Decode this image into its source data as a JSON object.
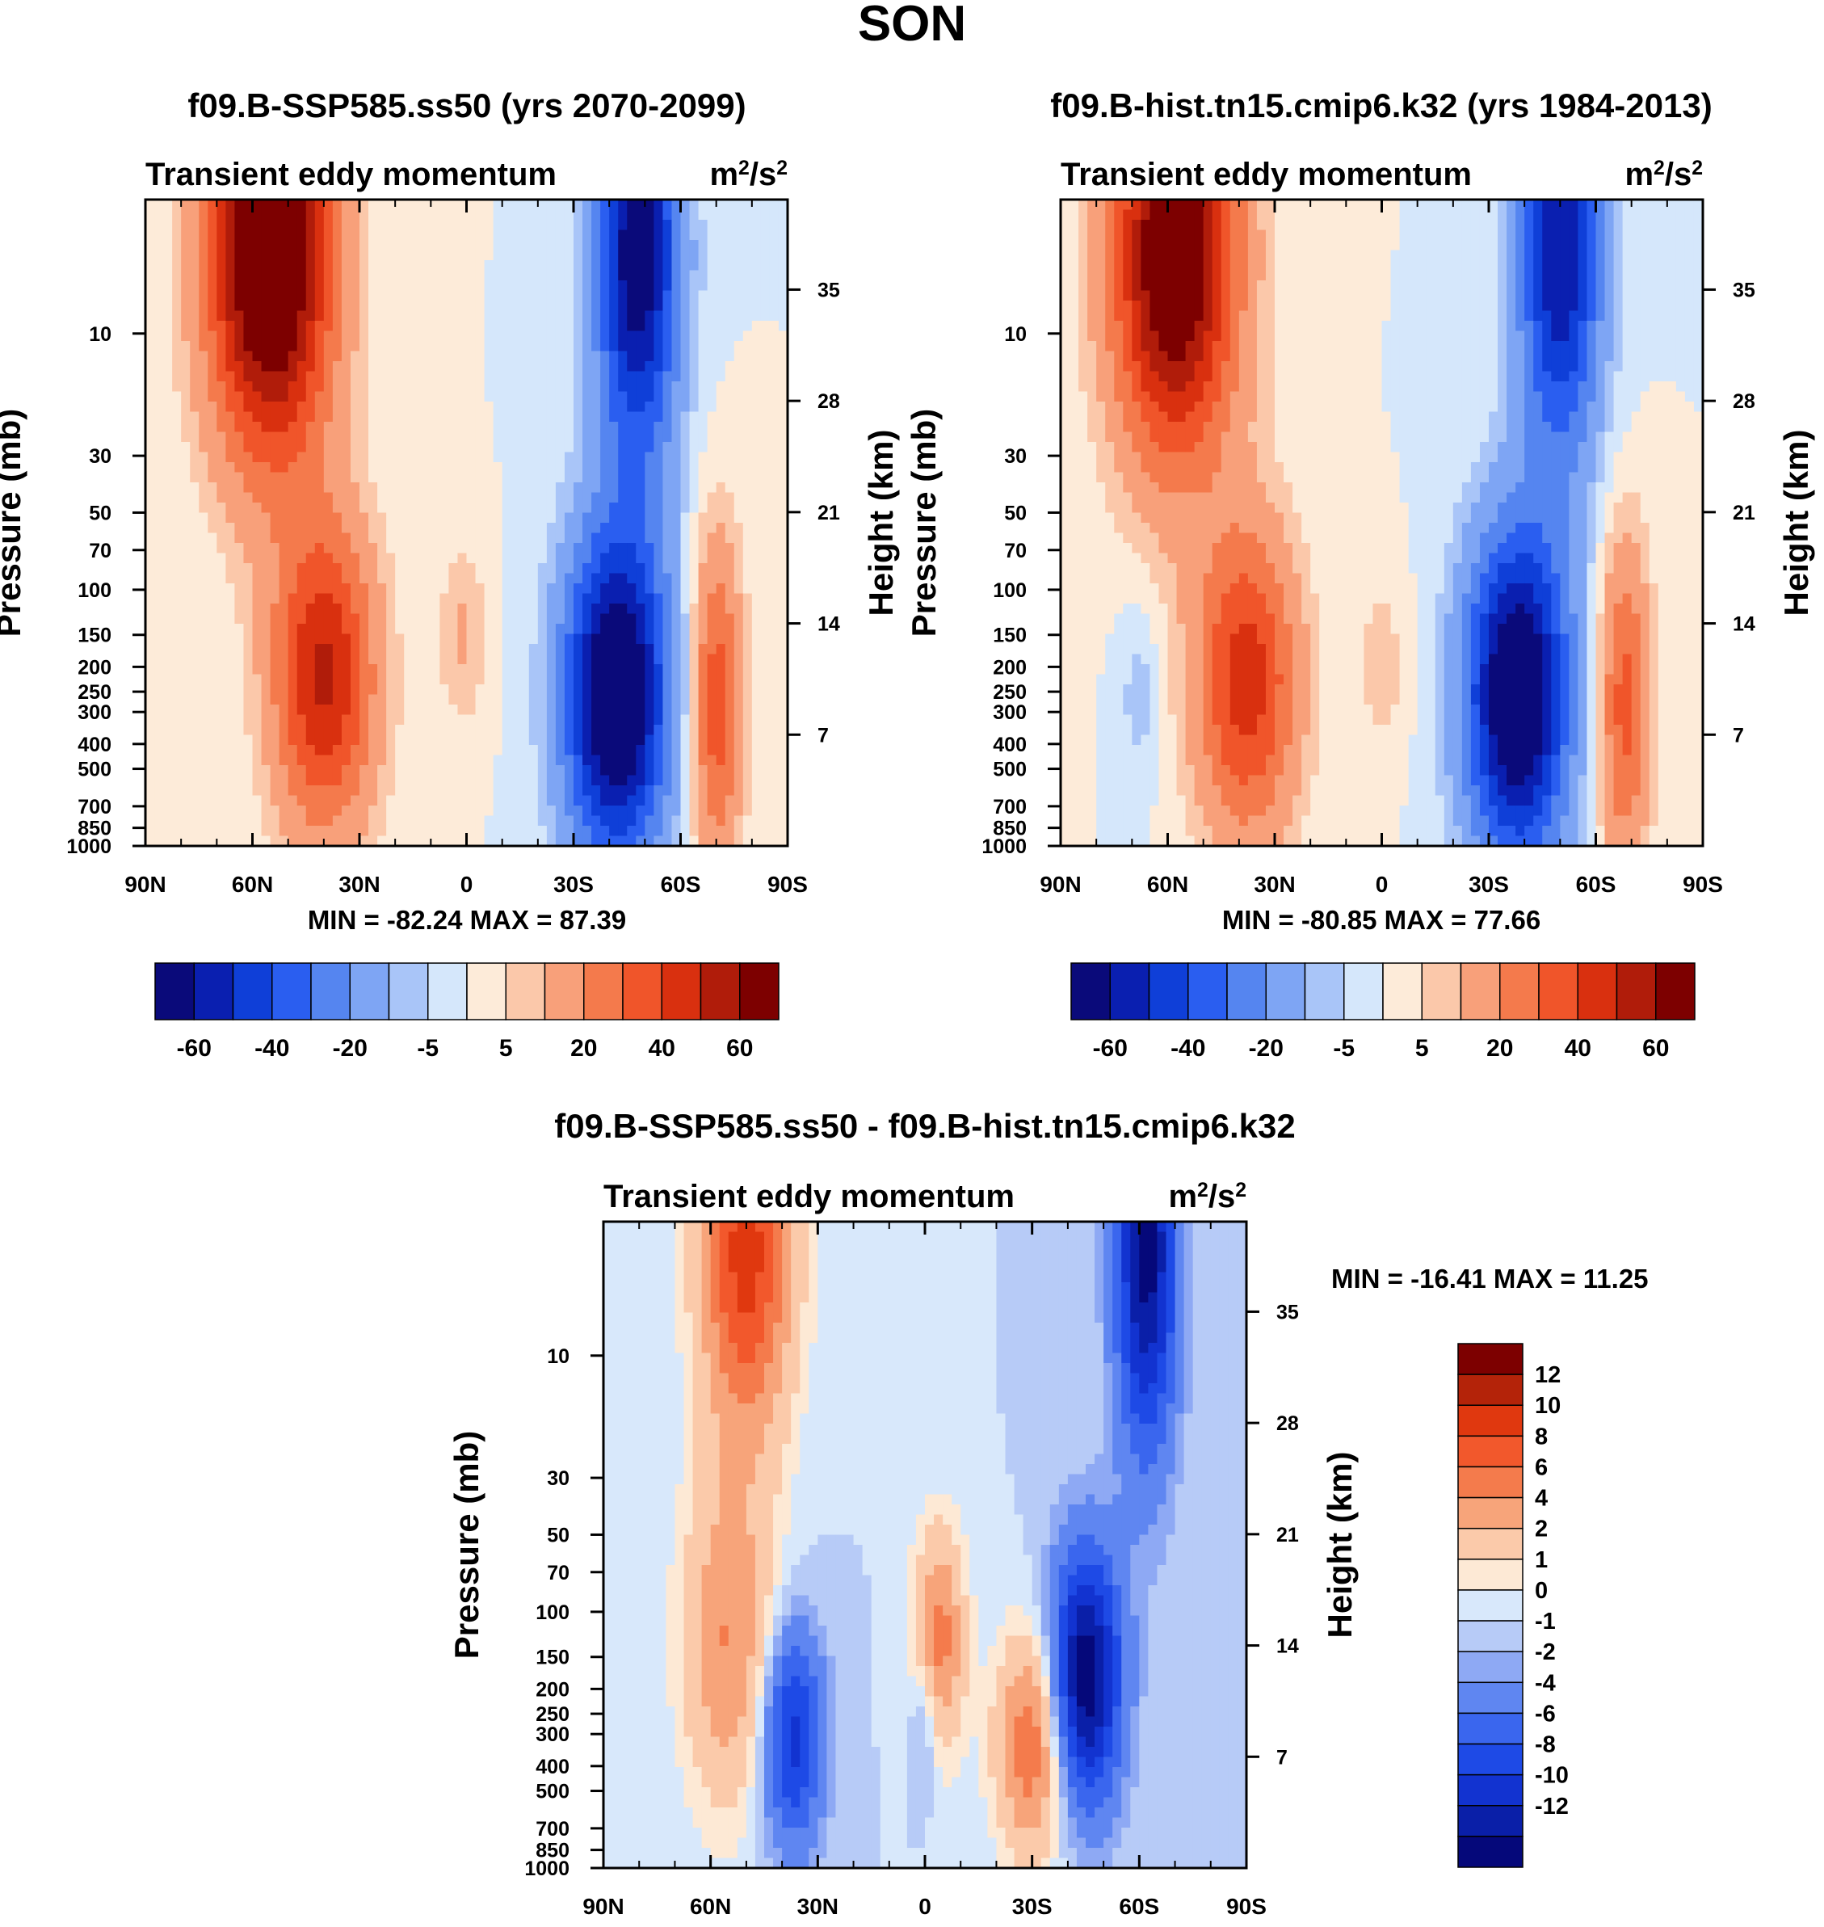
{
  "figure": {
    "title": "SON"
  },
  "colors": {
    "full_palette": [
      "#0a0a7a",
      "#0a1fb0",
      "#0f3fd8",
      "#2a5ef0",
      "#5585f0",
      "#7ea5f4",
      "#a9c5f8",
      "#d5e7fb",
      "#fdebd9",
      "#fbc8aa",
      "#f8a07a",
      "#f47a4c",
      "#f0552a",
      "#d9300f",
      "#b01c0a",
      "#7d0000"
    ],
    "diff_palette": [
      "#05087a",
      "#0a1fa8",
      "#1233d0",
      "#1e4ae6",
      "#3a66ee",
      "#5f86f1",
      "#8ea9f4",
      "#b7cbf7",
      "#d8e8fb",
      "#fde9d5",
      "#fbcaaa",
      "#f7a47a",
      "#f47b4c",
      "#f2582c",
      "#e0380f",
      "#b42309",
      "#7d0000"
    ]
  },
  "chart_data": [
    {
      "type": "heatmap",
      "id": "ssp585",
      "title": "f09.B-SSP585.ss50 (yrs 2070-2099)",
      "left_string": "Transient eddy momentum",
      "right_string": "m²/s²",
      "xlabel": "",
      "ylabel": "Pressure (mb)",
      "ylabel_right": "Height (km)",
      "x_ticks": [
        "90N",
        "60N",
        "30N",
        "0",
        "30S",
        "60S",
        "90S"
      ],
      "x_range": [
        90,
        -90
      ],
      "y_ticks_pressure": [
        10,
        30,
        50,
        70,
        100,
        150,
        200,
        250,
        300,
        400,
        500,
        700,
        850,
        1000
      ],
      "y_range_pressure": [
        1000,
        3
      ],
      "height_ticks_km": [
        35,
        28,
        21,
        14,
        7
      ],
      "stats": "MIN = -82.24  MAX =  87.39",
      "min": -82.24,
      "max": 87.39,
      "colorbar_levels": [
        -70,
        -60,
        -50,
        -40,
        -30,
        -20,
        -10,
        -5,
        0,
        5,
        10,
        20,
        30,
        40,
        50,
        60,
        70
      ],
      "colorbar_labels": [
        "-60",
        "-40",
        "-20",
        "-5",
        "5",
        "20",
        "40",
        "60"
      ],
      "features": [
        {
          "lat": 55,
          "p": 5,
          "value": 85,
          "sigma_lat": 12,
          "sigma_logp": 0.55
        },
        {
          "lat": 40,
          "p": 220,
          "value": 52,
          "sigma_lat": 10,
          "sigma_logp": 0.42
        },
        {
          "lat": 1,
          "p": 150,
          "value": 11,
          "sigma_lat": 5,
          "sigma_logp": 0.25
        },
        {
          "lat": -70,
          "p": 280,
          "value": 36,
          "sigma_lat": 5,
          "sigma_logp": 0.45
        },
        {
          "lat": -42,
          "p": 260,
          "value": -82,
          "sigma_lat": 10,
          "sigma_logp": 0.45
        },
        {
          "lat": -48,
          "p": 5,
          "value": -70,
          "sigma_lat": 8,
          "sigma_logp": 0.55
        }
      ]
    },
    {
      "type": "heatmap",
      "id": "hist",
      "title": "f09.B-hist.tn15.cmip6.k32 (yrs 1984-2013)",
      "left_string": "Transient eddy momentum",
      "right_string": "m²/s²",
      "xlabel": "",
      "ylabel": "Pressure (mb)",
      "ylabel_right": "Height (km)",
      "x_ticks": [
        "90N",
        "60N",
        "30N",
        "0",
        "30S",
        "60S",
        "90S"
      ],
      "x_range": [
        90,
        -90
      ],
      "y_ticks_pressure": [
        10,
        30,
        50,
        70,
        100,
        150,
        200,
        250,
        300,
        400,
        500,
        700,
        850,
        1000
      ],
      "y_range_pressure": [
        1000,
        3
      ],
      "height_ticks_km": [
        35,
        28,
        21,
        14,
        7
      ],
      "stats": "MIN = -80.85  MAX =  77.66",
      "min": -80.85,
      "max": 77.66,
      "colorbar_levels": [
        -70,
        -60,
        -50,
        -40,
        -30,
        -20,
        -10,
        -5,
        0,
        5,
        10,
        20,
        30,
        40,
        50,
        60,
        70
      ],
      "colorbar_labels": [
        "-60",
        "-40",
        "-20",
        "-5",
        "5",
        "20",
        "40",
        "60"
      ],
      "features": [
        {
          "lat": 58,
          "p": 5,
          "value": 78,
          "sigma_lat": 12,
          "sigma_logp": 0.55
        },
        {
          "lat": 38,
          "p": 230,
          "value": 46,
          "sigma_lat": 10,
          "sigma_logp": 0.42
        },
        {
          "lat": 0,
          "p": 200,
          "value": 8,
          "sigma_lat": 5,
          "sigma_logp": 0.25
        },
        {
          "lat": -68,
          "p": 280,
          "value": 34,
          "sigma_lat": 5,
          "sigma_logp": 0.45
        },
        {
          "lat": -38,
          "p": 260,
          "value": -80,
          "sigma_lat": 10,
          "sigma_logp": 0.45
        },
        {
          "lat": -50,
          "p": 5,
          "value": -60,
          "sigma_lat": 8,
          "sigma_logp": 0.55
        },
        {
          "lat": 68,
          "p": 250,
          "value": -8,
          "sigma_lat": 4,
          "sigma_logp": 0.25
        }
      ]
    },
    {
      "type": "heatmap",
      "id": "diff",
      "title": "f09.B-SSP585.ss50 - f09.B-hist.tn15.cmip6.k32",
      "left_string": "Transient eddy momentum",
      "right_string": "m²/s²",
      "xlabel": "",
      "ylabel": "Pressure (mb)",
      "ylabel_right": "Height (km)",
      "x_ticks": [
        "90N",
        "60N",
        "30N",
        "0",
        "30S",
        "60S",
        "90S"
      ],
      "x_range": [
        90,
        -90
      ],
      "y_ticks_pressure": [
        10,
        30,
        50,
        70,
        100,
        150,
        200,
        250,
        300,
        400,
        500,
        700,
        850,
        1000
      ],
      "y_range_pressure": [
        1000,
        3
      ],
      "height_ticks_km": [
        35,
        28,
        21,
        14,
        7
      ],
      "stats": "MIN = -16.41  MAX =  11.25",
      "min": -16.41,
      "max": 11.25,
      "colorbar_levels": [
        -14,
        -12,
        -10,
        -8,
        -6,
        -4,
        -2,
        -1,
        0,
        1,
        2,
        4,
        6,
        8,
        10,
        12,
        14
      ],
      "colorbar_labels": [
        "12",
        "10",
        "8",
        "6",
        "4",
        "2",
        "1",
        "0",
        "-1",
        "-2",
        "-4",
        "-6",
        "-8",
        "-10",
        "-12"
      ],
      "features": [
        {
          "lat": 50,
          "p": 4,
          "value": 11,
          "sigma_lat": 9,
          "sigma_logp": 0.5
        },
        {
          "lat": 55,
          "p": 130,
          "value": 6,
          "sigma_lat": 9,
          "sigma_logp": 0.45
        },
        {
          "lat": 37,
          "p": 310,
          "value": -9,
          "sigma_lat": 6,
          "sigma_logp": 0.3
        },
        {
          "lat": -4,
          "p": 130,
          "value": 7,
          "sigma_lat": 5,
          "sigma_logp": 0.3
        },
        {
          "lat": -30,
          "p": 330,
          "value": 8,
          "sigma_lat": 7,
          "sigma_logp": 0.3
        },
        {
          "lat": -45,
          "p": 180,
          "value": -14,
          "sigma_lat": 7,
          "sigma_logp": 0.35
        },
        {
          "lat": -62,
          "p": 4,
          "value": -13,
          "sigma_lat": 6,
          "sigma_logp": 0.55
        },
        {
          "lat": 0,
          "p": 260,
          "value": -3,
          "sigma_lat": 3,
          "sigma_logp": 0.2
        }
      ]
    }
  ]
}
